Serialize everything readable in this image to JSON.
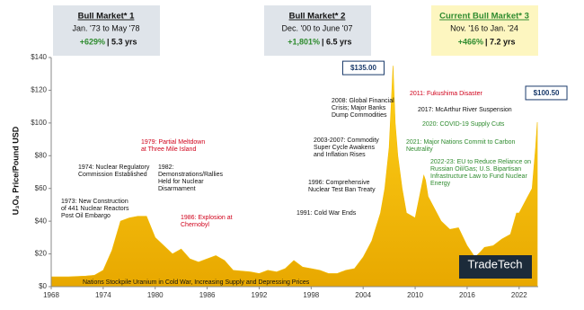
{
  "chart_data": {
    "type": "area",
    "y_label": "U₃O₈ Price/Pound USD",
    "color": "#f2bb00",
    "grid": false,
    "xlim": [
      1968,
      2024.2
    ],
    "xticks": [
      1968,
      1974,
      1980,
      1986,
      1992,
      1998,
      2004,
      2010,
      2016,
      2022
    ],
    "ylim": [
      0,
      140
    ],
    "yticks": [
      {
        "value": 0,
        "label": "$0"
      },
      {
        "value": 20,
        "label": "$20"
      },
      {
        "value": 40,
        "label": "$40"
      },
      {
        "value": 60,
        "label": "$60"
      },
      {
        "value": 80,
        "label": "$80"
      },
      {
        "value": 100,
        "label": "$100"
      },
      {
        "value": 120,
        "label": "$120"
      },
      {
        "value": 140,
        "label": "$140"
      }
    ],
    "x": [
      1968,
      1970,
      1972,
      1973,
      1974,
      1975,
      1976,
      1977,
      1978,
      1979,
      1980,
      1981,
      1982,
      1983,
      1984,
      1985,
      1986,
      1987,
      1988,
      1989,
      1990,
      1991,
      1992,
      1993,
      1994,
      1995,
      1996,
      1997,
      1998,
      1999,
      2000,
      2001,
      2002,
      2003,
      2004,
      2005,
      2006,
      2006.5,
      2007,
      2007.45,
      2007.7,
      2008,
      2008.5,
      2009,
      2010,
      2011,
      2011.2,
      2011.5,
      2012,
      2013,
      2014,
      2015,
      2016,
      2016.9,
      2017.5,
      2018,
      2019,
      2020,
      2021,
      2021.7,
      2022,
      2022.5,
      2023,
      2023.5,
      2023.9,
      2024.1
    ],
    "values": [
      6,
      6,
      6.5,
      7,
      10,
      22,
      40,
      42,
      43,
      43,
      30,
      25,
      20,
      23,
      17,
      15,
      17,
      19,
      16,
      10,
      9.5,
      9,
      8,
      10,
      9,
      11,
      16,
      12,
      11,
      10,
      8,
      8,
      10,
      11,
      18,
      28,
      45,
      60,
      85,
      135,
      100,
      80,
      60,
      45,
      42,
      68,
      65,
      55,
      50,
      40,
      35,
      36,
      25,
      18,
      21,
      24,
      25,
      29,
      32,
      45,
      45,
      50,
      55,
      60,
      85,
      100.5
    ],
    "value_labels": [
      null,
      null,
      null,
      null,
      null,
      null,
      null,
      null,
      null,
      null,
      null,
      null,
      null,
      null,
      null,
      null,
      null,
      null,
      null,
      null,
      null,
      null,
      null,
      null,
      null,
      null,
      null,
      null,
      null,
      null,
      null,
      null,
      null,
      null,
      null,
      null,
      null,
      null,
      null,
      "$135.00",
      null,
      null,
      null,
      null,
      null,
      null,
      null,
      null,
      null,
      null,
      null,
      null,
      null,
      null,
      null,
      null,
      null,
      null,
      null,
      null,
      null,
      null,
      null,
      null,
      null,
      "$100.50"
    ],
    "bull_markets": [
      {
        "title": "Bull Market* 1",
        "period": "Jan. '73 to May '78",
        "gain": "+629%",
        "duration": "| 5.3 yrs"
      },
      {
        "title": "Bull Market* 2",
        "period": "Dec. '00 to June '07",
        "gain": "+1,801%",
        "duration": "| 6.5 yrs"
      },
      {
        "title": "Current Bull Market* 3",
        "period": "Nov. '16 to Jan. '24",
        "gain": "+466%",
        "duration": "| 7.2 yrs"
      }
    ],
    "annotations": [
      [
        "1973: New Construction",
        "of 441 Nuclear Reactors",
        "Post Oil Embargo"
      ],
      [
        "1974: Nuclear Regulatory",
        "Commission Established"
      ],
      [
        "1979: Partial Meltdown",
        "at Three Mile Island"
      ],
      [
        "1982:",
        "Demonstrations/Rallies",
        "Held for Nuclear",
        "Disarmament"
      ],
      [
        "1986: Explosion at",
        "Chernobyl"
      ],
      [
        "1991: Cold War Ends"
      ],
      [
        "1996: Comprehensive",
        "Nuclear Test Ban Treaty"
      ],
      [
        "2003-2007: Commodity",
        "Super Cycle Awakens",
        "and Inflation Rises"
      ],
      [
        "2008: Global Financial",
        "Crisis; Major Banks",
        "Dump Commodities"
      ],
      [
        "2011: Fukushima Disaster"
      ],
      [
        "2017: McArthur River Suspension"
      ],
      [
        "2020: COVID-19 Supply Cuts"
      ],
      [
        "2021: Major Nations Commit to Carbon",
        "Neutrality"
      ],
      [
        "2022-23: EU to Reduce Reliance on",
        "Russian Oil/Gas; U.S. Bipartisan",
        "Infrastructure Law to Fund Nuclear",
        "Energy"
      ],
      [
        "Nations Stockpile Uranium in Cold War, Increasing Supply and Depressing Prices"
      ]
    ],
    "logo": "TradeTech"
  }
}
